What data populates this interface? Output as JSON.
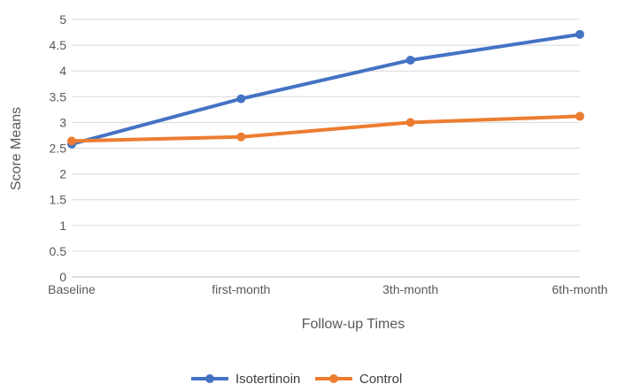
{
  "chart_data": {
    "type": "line",
    "title": "",
    "xlabel": "Follow-up Times",
    "ylabel": "Score Means",
    "categories": [
      "Baseline",
      "first-month",
      "3th-month",
      "6th-month"
    ],
    "ylim": [
      0,
      5
    ],
    "yticks": [
      0,
      0.5,
      1,
      1.5,
      2,
      2.5,
      3,
      3.5,
      4,
      4.5,
      5
    ],
    "ytick_labels": [
      "0",
      "0.5",
      "1",
      "1.5",
      "2",
      "2.5",
      "3",
      "3.5",
      "4",
      "4.5",
      "5"
    ],
    "grid": true,
    "legend_position": "bottom",
    "series": [
      {
        "name": "Isotertinoin",
        "color": "#4472c4",
        "values": [
          2.58,
          3.46,
          4.21,
          4.71
        ]
      },
      {
        "name": "Control",
        "color": "#ed7d31",
        "values": [
          2.64,
          2.72,
          3.0,
          3.12
        ]
      }
    ]
  }
}
